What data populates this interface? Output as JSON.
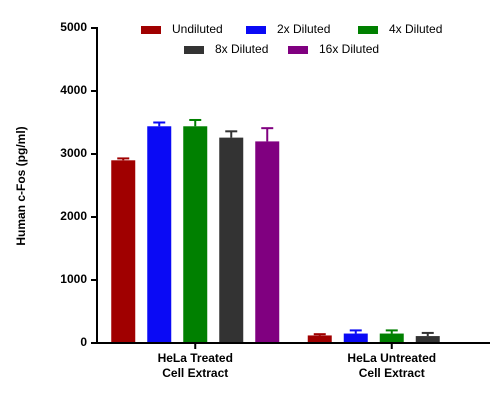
{
  "chart_data": {
    "type": "bar",
    "y_label": "Human c-Fos (pg/ml)",
    "categories": [
      "HeLa Treated\nCell Extract",
      "HeLa Untreated\nCell Extract"
    ],
    "series": [
      {
        "name": "Undiluted",
        "color": "#a00000",
        "values": [
          2900,
          120
        ],
        "errors": [
          30,
          20
        ]
      },
      {
        "name": "2x Diluted",
        "color": "#0a0af5",
        "values": [
          3440,
          150
        ],
        "errors": [
          60,
          50
        ]
      },
      {
        "name": "4x Diluted",
        "color": "#008000",
        "values": [
          3440,
          150
        ],
        "errors": [
          100,
          50
        ]
      },
      {
        "name": "8x Diluted",
        "color": "#333333",
        "values": [
          3260,
          110
        ],
        "errors": [
          100,
          50
        ]
      },
      {
        "name": "16x Diluted",
        "color": "#800080",
        "values": [
          3200,
          0
        ],
        "errors": [
          210,
          null
        ]
      }
    ],
    "ylim": [
      0,
      5000
    ],
    "yticks": [
      0,
      1000,
      2000,
      3000,
      4000,
      5000
    ],
    "grid": false
  }
}
